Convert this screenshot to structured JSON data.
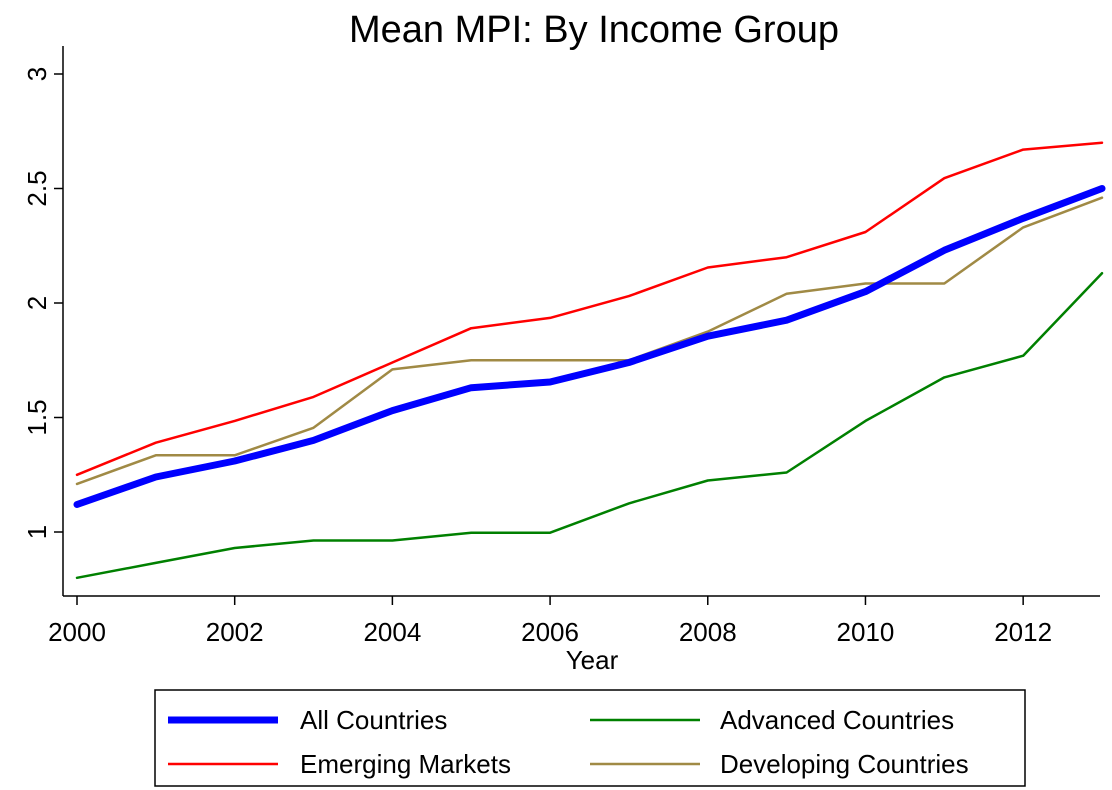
{
  "chart_data": {
    "type": "line",
    "title": "Mean MPI: By Income Group",
    "xlabel": "Year",
    "ylabel": "",
    "x": [
      2000,
      2001,
      2002,
      2003,
      2004,
      2005,
      2006,
      2007,
      2008,
      2009,
      2010,
      2011,
      2012,
      2013
    ],
    "xticks": [
      2000,
      2002,
      2004,
      2006,
      2008,
      2010,
      2012
    ],
    "xtick_labels": [
      "2000",
      "2002",
      "2004",
      "2006",
      "2008",
      "2010",
      "2012"
    ],
    "xlim": [
      2000,
      2013
    ],
    "yticks": [
      1,
      1.5,
      2,
      2.5,
      3
    ],
    "ytick_labels": [
      "1",
      "1.5",
      "2",
      "2.5",
      "3"
    ],
    "ylim": [
      0.75,
      3.05
    ],
    "grid": false,
    "legend_position": "bottom",
    "series": [
      {
        "name": "All Countries",
        "color": "#0000ff",
        "values": [
          1.12,
          1.24,
          1.31,
          1.4,
          1.53,
          1.63,
          1.655,
          1.74,
          1.855,
          1.925,
          2.05,
          2.23,
          2.37,
          2.5
        ]
      },
      {
        "name": "Advanced Countries",
        "color": "#008000",
        "values": [
          0.8,
          0.865,
          0.93,
          0.963,
          0.963,
          0.997,
          0.997,
          1.125,
          1.225,
          1.26,
          1.485,
          1.675,
          1.77,
          2.13
        ]
      },
      {
        "name": "Emerging Markets",
        "color": "#ff0000",
        "values": [
          1.25,
          1.39,
          1.485,
          1.59,
          1.74,
          1.89,
          1.935,
          2.03,
          2.155,
          2.2,
          2.31,
          2.545,
          2.67,
          2.7
        ]
      },
      {
        "name": "Developing Countries",
        "color": "#a08a45",
        "values": [
          1.21,
          1.335,
          1.335,
          1.455,
          1.71,
          1.75,
          1.75,
          1.75,
          1.875,
          2.04,
          2.085,
          2.085,
          2.33,
          2.46
        ]
      }
    ]
  }
}
